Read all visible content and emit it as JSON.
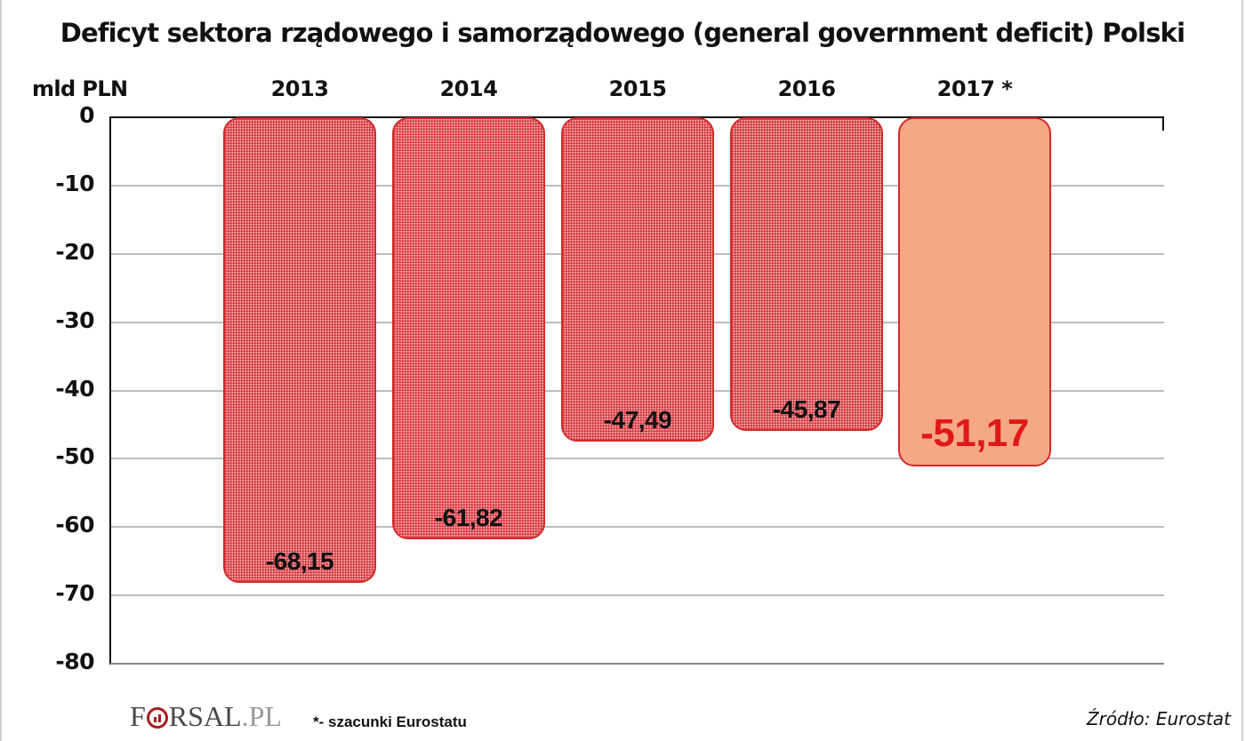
{
  "title": "Deficyt sektora rządowego i samorządowego (general government deficit) Polski",
  "unit_label": "mld PLN",
  "footnote": "*- szacunki Eurostatu",
  "source": "Źródło: Eurostat",
  "logo": {
    "text_f": "F",
    "text_rest": "RSAL",
    "text_pl": ".PL"
  },
  "colors": {
    "bar_border": "#d42a2a",
    "bar_pattern": "#d62832",
    "estimate_fill": "#f4a885",
    "estimate_label": "#e01818"
  },
  "chart_data": {
    "type": "bar",
    "title": "Deficyt sektora rządowego i samorządowego (general government deficit) Polski",
    "xlabel": "",
    "ylabel": "mld PLN",
    "categories": [
      "2013",
      "2014",
      "2015",
      "2016",
      "2017 *"
    ],
    "values": [
      -68.15,
      -61.82,
      -47.49,
      -45.87,
      -51.17
    ],
    "value_labels": [
      "-68,15",
      "-61,82",
      "-47,49",
      "-45,87",
      "-51,17"
    ],
    "estimate_flags": [
      false,
      false,
      false,
      false,
      true
    ],
    "ylim": [
      -80,
      0
    ],
    "yticks": [
      0,
      -10,
      -20,
      -30,
      -40,
      -50,
      -60,
      -70,
      -80
    ],
    "ytick_labels": [
      "0",
      "-10",
      "-20",
      "-30",
      "-40",
      "-50",
      "-60",
      "-70",
      "-80"
    ],
    "grid": true,
    "legend": null,
    "annotations": [
      "*- szacunki Eurostatu",
      "Źródło: Eurostat"
    ]
  }
}
